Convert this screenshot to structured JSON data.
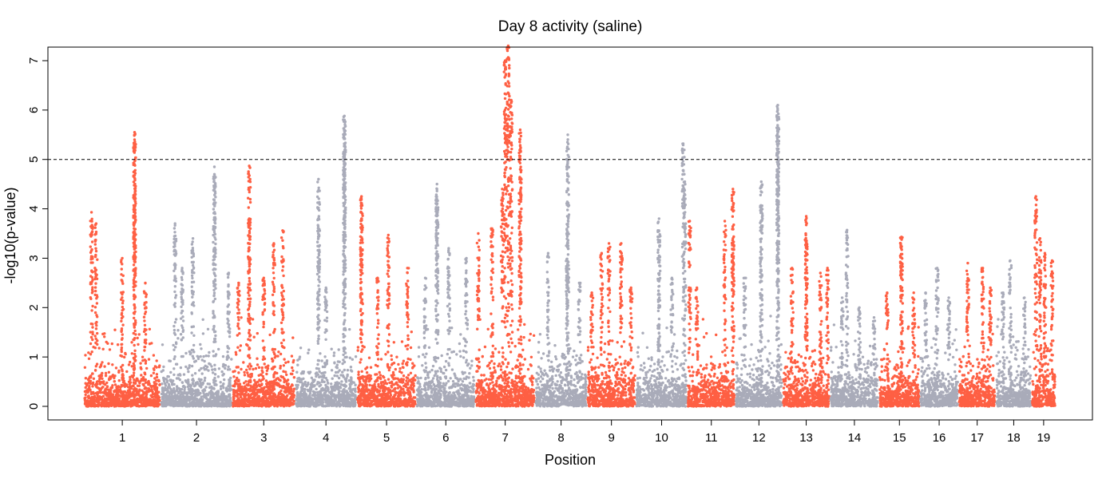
{
  "chart_data": {
    "type": "scatter",
    "title": "Day 8 activity (saline)",
    "xlabel": "Position",
    "ylabel": "-log10(p-value)",
    "ylim": [
      -0.3,
      7.3
    ],
    "yticks": [
      0,
      1,
      2,
      3,
      4,
      5,
      6,
      7
    ],
    "threshold": 5,
    "grid": false,
    "legend": "none",
    "colors": {
      "odd": "#fe5f43",
      "even": "#a9abb9"
    },
    "chromosomes": [
      {
        "name": "1",
        "label": "1",
        "start": 0.0,
        "length": 195.5,
        "max": 5.55,
        "peaks": [
          [
            0.1,
            3.93
          ],
          [
            0.16,
            3.7
          ],
          [
            0.66,
            5.55
          ],
          [
            0.66,
            5.4
          ],
          [
            0.66,
            4.2
          ],
          [
            0.5,
            3.0
          ],
          [
            0.8,
            2.5
          ]
        ]
      },
      {
        "name": "2",
        "label": "2",
        "start": 195.5,
        "length": 182.1,
        "max": 4.85,
        "peaks": [
          [
            0.75,
            4.85
          ],
          [
            0.75,
            4.7
          ],
          [
            0.45,
            3.4
          ],
          [
            0.2,
            3.7
          ],
          [
            0.3,
            2.8
          ],
          [
            0.95,
            2.7
          ]
        ]
      },
      {
        "name": "3",
        "label": "3",
        "start": 377.6,
        "length": 160.0,
        "max": 4.87,
        "peaks": [
          [
            0.27,
            4.87
          ],
          [
            0.27,
            3.8
          ],
          [
            0.66,
            3.3
          ],
          [
            0.8,
            3.56
          ],
          [
            0.5,
            2.6
          ],
          [
            0.1,
            2.5
          ]
        ]
      },
      {
        "name": "4",
        "label": "4",
        "start": 537.6,
        "length": 156.5,
        "max": 5.88,
        "peaks": [
          [
            0.8,
            5.88
          ],
          [
            0.8,
            5.8
          ],
          [
            0.8,
            5.3
          ],
          [
            0.38,
            4.6
          ],
          [
            0.38,
            3.6
          ],
          [
            0.5,
            2.4
          ]
        ]
      },
      {
        "name": "5",
        "label": "5",
        "start": 694.1,
        "length": 151.8,
        "max": 4.25,
        "peaks": [
          [
            0.08,
            4.25
          ],
          [
            0.08,
            3.8
          ],
          [
            0.53,
            3.47
          ],
          [
            0.85,
            2.8
          ],
          [
            0.35,
            2.6
          ]
        ]
      },
      {
        "name": "6",
        "label": "6",
        "start": 845.9,
        "length": 149.7,
        "max": 4.5,
        "peaks": [
          [
            0.35,
            4.5
          ],
          [
            0.35,
            4.4
          ],
          [
            0.55,
            3.2
          ],
          [
            0.85,
            3.0
          ],
          [
            0.15,
            2.6
          ]
        ]
      },
      {
        "name": "7",
        "label": "7",
        "start": 995.6,
        "length": 152.5,
        "max": 7.3,
        "peaks": [
          [
            0.55,
            7.3
          ],
          [
            0.5,
            7.0
          ],
          [
            0.6,
            6.2
          ],
          [
            0.45,
            4.4
          ],
          [
            0.75,
            5.6
          ],
          [
            0.75,
            4.8
          ],
          [
            0.28,
            3.6
          ],
          [
            0.05,
            3.5
          ]
        ]
      },
      {
        "name": "8",
        "label": "8",
        "start": 1148.1,
        "length": 131.7,
        "max": 5.5,
        "peaks": [
          [
            0.63,
            5.5
          ],
          [
            0.62,
            3.85
          ],
          [
            0.62,
            3.3
          ],
          [
            0.25,
            3.1
          ],
          [
            0.85,
            2.5
          ]
        ]
      },
      {
        "name": "9",
        "label": "9",
        "start": 1279.8,
        "length": 124.6,
        "max": 3.3,
        "peaks": [
          [
            0.45,
            3.3
          ],
          [
            0.3,
            3.1
          ],
          [
            0.7,
            3.3
          ],
          [
            0.1,
            2.3
          ],
          [
            0.9,
            2.4
          ]
        ]
      },
      {
        "name": "10",
        "label": "10",
        "start": 1404.4,
        "length": 130.7,
        "max": 5.32,
        "peaks": [
          [
            0.92,
            5.32
          ],
          [
            0.95,
            4.55
          ],
          [
            0.45,
            3.8
          ],
          [
            0.45,
            3.05
          ],
          [
            0.7,
            2.6
          ]
        ]
      },
      {
        "name": "11",
        "label": "11",
        "start": 1535.1,
        "length": 122.1,
        "max": 4.4,
        "peaks": [
          [
            0.95,
            4.4
          ],
          [
            0.78,
            3.75
          ],
          [
            0.95,
            3.4
          ],
          [
            0.05,
            3.75
          ],
          [
            0.2,
            2.4
          ]
        ]
      },
      {
        "name": "12",
        "label": "12",
        "start": 1657.2,
        "length": 120.1,
        "max": 6.1,
        "peaks": [
          [
            0.9,
            6.1
          ],
          [
            0.9,
            5.65
          ],
          [
            0.9,
            5.2
          ],
          [
            0.55,
            4.55
          ],
          [
            0.55,
            4.0
          ],
          [
            0.2,
            2.6
          ]
        ]
      },
      {
        "name": "13",
        "label": "13",
        "start": 1777.3,
        "length": 120.4,
        "max": 3.85,
        "peaks": [
          [
            0.5,
            3.85
          ],
          [
            0.5,
            3.1
          ],
          [
            0.2,
            2.8
          ],
          [
            0.8,
            2.7
          ],
          [
            0.95,
            2.8
          ]
        ]
      },
      {
        "name": "14",
        "label": "14",
        "start": 1897.7,
        "length": 124.9,
        "max": 3.57,
        "peaks": [
          [
            0.35,
            3.57
          ],
          [
            0.25,
            2.2
          ],
          [
            0.6,
            2.0
          ],
          [
            0.9,
            1.8
          ]
        ]
      },
      {
        "name": "15",
        "label": "15",
        "start": 2022.6,
        "length": 104.0,
        "max": 3.43,
        "peaks": [
          [
            0.55,
            3.43
          ],
          [
            0.55,
            2.9
          ],
          [
            0.2,
            2.3
          ],
          [
            0.85,
            2.3
          ]
        ]
      },
      {
        "name": "16",
        "label": "16",
        "start": 2126.6,
        "length": 98.2,
        "max": 2.8,
        "peaks": [
          [
            0.45,
            2.8
          ],
          [
            0.15,
            2.3
          ],
          [
            0.75,
            2.2
          ]
        ]
      },
      {
        "name": "17",
        "label": "17",
        "start": 2224.8,
        "length": 95.3,
        "max": 2.9,
        "peaks": [
          [
            0.25,
            2.9
          ],
          [
            0.65,
            2.8
          ],
          [
            0.85,
            2.4
          ]
        ]
      },
      {
        "name": "18",
        "label": "18",
        "start": 2320.1,
        "length": 90.7,
        "max": 2.95,
        "peaks": [
          [
            0.4,
            2.95
          ],
          [
            0.2,
            2.3
          ],
          [
            0.8,
            2.2
          ]
        ]
      },
      {
        "name": "19",
        "label": "19",
        "start": 2410.8,
        "length": 61.4,
        "max": 4.25,
        "peaks": [
          [
            0.18,
            4.25
          ],
          [
            0.35,
            3.4
          ],
          [
            0.55,
            3.1
          ],
          [
            0.85,
            2.95
          ]
        ]
      }
    ]
  }
}
